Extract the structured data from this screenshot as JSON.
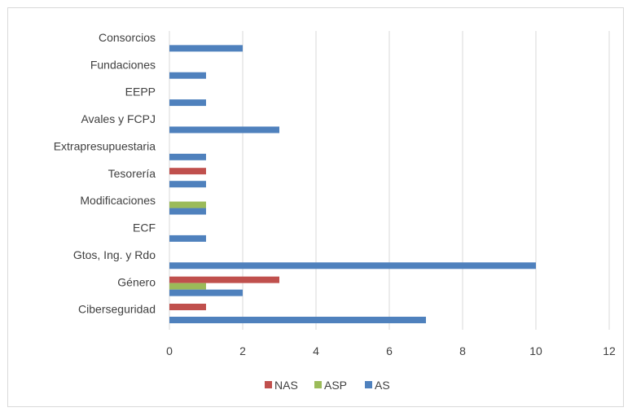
{
  "chart_data": {
    "type": "bar",
    "orientation": "horizontal",
    "categories": [
      "Consorcios",
      "Fundaciones ",
      "EEPP",
      "Avales y FCPJ",
      "Extrapresupuestaria",
      "Tesorería",
      "Modificaciones",
      "ECF",
      "Gtos, Ing. y Rdo",
      "Género",
      "Ciberseguridad "
    ],
    "series": [
      {
        "name": "NAS",
        "color": "#c0504d",
        "values": [
          0,
          0,
          0,
          0,
          0,
          1,
          0,
          0,
          0,
          3,
          1
        ]
      },
      {
        "name": "ASP",
        "color": "#9bbb59",
        "values": [
          0,
          0,
          0,
          0,
          0,
          0,
          1,
          0,
          0,
          1,
          0
        ]
      },
      {
        "name": "AS",
        "color": "#4f81bd",
        "values": [
          2,
          1,
          1,
          3,
          1,
          1,
          1,
          1,
          10,
          2,
          7
        ]
      }
    ],
    "xlim": [
      0,
      12
    ],
    "xticks": [
      "0",
      "2",
      "4",
      "6",
      "8",
      "10",
      "12"
    ],
    "grid": "vertical",
    "legend": "bottom"
  }
}
